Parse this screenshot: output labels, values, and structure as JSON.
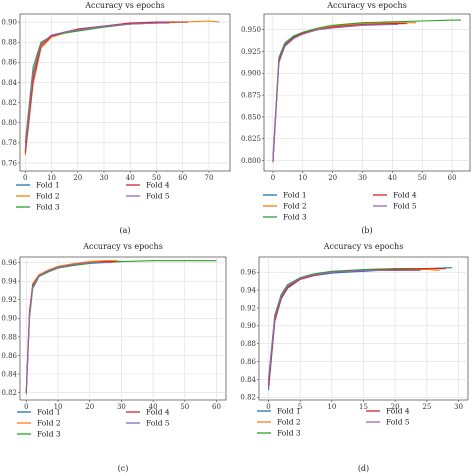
{
  "chart_data": [
    {
      "type": "line",
      "panel": "(a)",
      "title": "Accuracy vs epochs",
      "xlim": [
        -2,
        78
      ],
      "ylim": [
        0.752,
        0.908
      ],
      "xticks": [
        0,
        10,
        20,
        30,
        40,
        50,
        60,
        70
      ],
      "yticks": [
        0.76,
        0.78,
        0.8,
        0.82,
        0.84,
        0.86,
        0.88,
        0.9
      ],
      "ytick_labels": [
        "0.76",
        "0.78",
        "0.80",
        "0.82",
        "0.84",
        "0.86",
        "0.88",
        "0.90"
      ],
      "grid": true,
      "series": [
        {
          "name": "Fold 1",
          "color": "#1f77b4",
          "x": [
            0,
            3,
            6,
            10,
            15,
            20,
            30,
            40,
            50,
            58
          ],
          "y": [
            0.772,
            0.848,
            0.878,
            0.887,
            0.89,
            0.893,
            0.896,
            0.899,
            0.899,
            0.9
          ]
        },
        {
          "name": "Fold 2",
          "color": "#ff7f0e",
          "x": [
            0,
            3,
            6,
            10,
            15,
            20,
            30,
            40,
            50,
            60,
            70,
            74
          ],
          "y": [
            0.768,
            0.838,
            0.874,
            0.885,
            0.889,
            0.892,
            0.895,
            0.898,
            0.899,
            0.9,
            0.901,
            0.9
          ]
        },
        {
          "name": "Fold 3",
          "color": "#2ca02c",
          "x": [
            0,
            3,
            6,
            10,
            15,
            20,
            30,
            40,
            48
          ],
          "y": [
            0.78,
            0.855,
            0.88,
            0.886,
            0.889,
            0.891,
            0.895,
            0.898,
            0.899
          ]
        },
        {
          "name": "Fold 4",
          "color": "#d62728",
          "x": [
            0,
            3,
            6,
            10,
            15,
            20,
            30,
            40,
            50,
            62
          ],
          "y": [
            0.77,
            0.842,
            0.876,
            0.886,
            0.89,
            0.893,
            0.896,
            0.899,
            0.9,
            0.9
          ]
        },
        {
          "name": "Fold 5",
          "color": "#9467bd",
          "x": [
            0,
            3,
            6,
            10,
            15,
            20,
            30,
            40,
            50,
            55
          ],
          "y": [
            0.775,
            0.85,
            0.878,
            0.887,
            0.89,
            0.892,
            0.896,
            0.898,
            0.899,
            0.899
          ]
        }
      ],
      "legend": [
        "Fold 1",
        "Fold 2",
        "Fold 3",
        "Fold 4",
        "Fold 5"
      ]
    },
    {
      "type": "line",
      "panel": "(b)",
      "title": "Accuracy vs epochs",
      "xlim": [
        -3,
        66
      ],
      "ylim": [
        0.788,
        0.968
      ],
      "xticks": [
        0,
        10,
        20,
        30,
        40,
        50,
        60
      ],
      "yticks": [
        0.8,
        0.825,
        0.85,
        0.875,
        0.9,
        0.925,
        0.95
      ],
      "ytick_labels": [
        "0.800",
        "0.825",
        "0.850",
        "0.875",
        "0.900",
        "0.925",
        "0.950"
      ],
      "grid": true,
      "series": [
        {
          "name": "Fold 1",
          "color": "#1f77b4",
          "x": [
            0,
            2,
            4,
            7,
            10,
            15,
            20,
            30,
            40,
            45
          ],
          "y": [
            0.798,
            0.915,
            0.933,
            0.942,
            0.946,
            0.95,
            0.953,
            0.956,
            0.957,
            0.957
          ]
        },
        {
          "name": "Fold 2",
          "color": "#ff7f0e",
          "x": [
            0,
            2,
            4,
            7,
            10,
            15,
            20,
            30,
            40,
            48
          ],
          "y": [
            0.8,
            0.913,
            0.932,
            0.941,
            0.946,
            0.951,
            0.954,
            0.957,
            0.958,
            0.958
          ]
        },
        {
          "name": "Fold 3",
          "color": "#2ca02c",
          "x": [
            0,
            2,
            4,
            7,
            10,
            15,
            20,
            30,
            40,
            50,
            60,
            63
          ],
          "y": [
            0.805,
            0.918,
            0.935,
            0.943,
            0.947,
            0.952,
            0.955,
            0.958,
            0.959,
            0.96,
            0.961,
            0.961
          ]
        },
        {
          "name": "Fold 4",
          "color": "#d62728",
          "x": [
            0,
            2,
            4,
            7,
            10,
            15,
            20,
            30,
            40,
            44
          ],
          "y": [
            0.799,
            0.914,
            0.932,
            0.941,
            0.946,
            0.95,
            0.953,
            0.956,
            0.957,
            0.957
          ]
        },
        {
          "name": "Fold 5",
          "color": "#9467bd",
          "x": [
            0,
            2,
            4,
            7,
            10,
            15,
            20,
            30,
            40,
            42
          ],
          "y": [
            0.801,
            0.912,
            0.931,
            0.94,
            0.945,
            0.95,
            0.952,
            0.955,
            0.956,
            0.956
          ]
        }
      ],
      "legend": [
        "Fold 1",
        "Fold 2",
        "Fold 3",
        "Fold 4",
        "Fold 5"
      ]
    },
    {
      "type": "line",
      "panel": "(c)",
      "title": "Accuracy vs epochs",
      "xlim": [
        -2,
        63
      ],
      "ylim": [
        0.812,
        0.966
      ],
      "xticks": [
        0,
        10,
        20,
        30,
        40,
        50,
        60
      ],
      "yticks": [
        0.82,
        0.84,
        0.86,
        0.88,
        0.9,
        0.92,
        0.94,
        0.96
      ],
      "ytick_labels": [
        "0.82",
        "0.84",
        "0.86",
        "0.88",
        "0.90",
        "0.92",
        "0.94",
        "0.96"
      ],
      "grid": true,
      "series": [
        {
          "name": "Fold 1",
          "color": "#1f77b4",
          "x": [
            0,
            1,
            2,
            4,
            7,
            10,
            15,
            20,
            25,
            30
          ],
          "y": [
            0.82,
            0.905,
            0.935,
            0.946,
            0.951,
            0.955,
            0.958,
            0.96,
            0.961,
            0.961
          ]
        },
        {
          "name": "Fold 2",
          "color": "#ff7f0e",
          "x": [
            0,
            1,
            2,
            4,
            7,
            10,
            15,
            20,
            25,
            29
          ],
          "y": [
            0.822,
            0.908,
            0.937,
            0.947,
            0.952,
            0.956,
            0.959,
            0.961,
            0.962,
            0.962
          ]
        },
        {
          "name": "Fold 3",
          "color": "#2ca02c",
          "x": [
            0,
            1,
            2,
            4,
            7,
            10,
            15,
            20,
            30,
            40,
            50,
            60
          ],
          "y": [
            0.818,
            0.9,
            0.932,
            0.945,
            0.95,
            0.954,
            0.957,
            0.959,
            0.961,
            0.962,
            0.962,
            0.962
          ]
        },
        {
          "name": "Fold 4",
          "color": "#d62728",
          "x": [
            0,
            1,
            2,
            4,
            7,
            10,
            15,
            20,
            25,
            28
          ],
          "y": [
            0.821,
            0.906,
            0.936,
            0.946,
            0.951,
            0.955,
            0.958,
            0.96,
            0.961,
            0.961
          ]
        },
        {
          "name": "Fold 5",
          "color": "#9467bd",
          "x": [
            0,
            1,
            2,
            4,
            7,
            10,
            15,
            20,
            25,
            27
          ],
          "y": [
            0.823,
            0.904,
            0.934,
            0.946,
            0.951,
            0.955,
            0.958,
            0.96,
            0.96,
            0.96
          ]
        }
      ],
      "legend": [
        "Fold 1",
        "Fold 2",
        "Fold 3",
        "Fold 4",
        "Fold 5"
      ]
    },
    {
      "type": "line",
      "panel": "(d)",
      "title": "Accuracy vs epochs",
      "xlim": [
        -1.5,
        31.5
      ],
      "ylim": [
        0.817,
        0.977
      ],
      "xticks": [
        0,
        5,
        10,
        15,
        20,
        25,
        30
      ],
      "yticks": [
        0.82,
        0.84,
        0.86,
        0.88,
        0.9,
        0.92,
        0.94,
        0.96
      ],
      "ytick_labels": [
        "0.82",
        "0.84",
        "0.86",
        "0.88",
        "0.90",
        "0.92",
        "0.94",
        "0.96"
      ],
      "grid": true,
      "series": [
        {
          "name": "Fold 1",
          "color": "#1f77b4",
          "x": [
            0,
            1,
            2,
            3,
            5,
            7,
            10,
            15,
            20,
            25,
            29
          ],
          "y": [
            0.828,
            0.905,
            0.93,
            0.942,
            0.952,
            0.956,
            0.959,
            0.961,
            0.963,
            0.964,
            0.965
          ]
        },
        {
          "name": "Fold 2",
          "color": "#ff7f0e",
          "x": [
            0,
            1,
            2,
            3,
            5,
            7,
            10,
            15,
            20,
            25,
            27
          ],
          "y": [
            0.835,
            0.908,
            0.932,
            0.944,
            0.953,
            0.957,
            0.96,
            0.962,
            0.963,
            0.963,
            0.962
          ]
        },
        {
          "name": "Fold 3",
          "color": "#2ca02c",
          "x": [
            0,
            1,
            2,
            3,
            5,
            7,
            10,
            15,
            20,
            25,
            28
          ],
          "y": [
            0.84,
            0.912,
            0.935,
            0.946,
            0.954,
            0.958,
            0.961,
            0.963,
            0.964,
            0.964,
            0.964
          ]
        },
        {
          "name": "Fold 4",
          "color": "#d62728",
          "x": [
            0,
            1,
            2,
            3,
            5,
            7,
            10,
            15,
            20,
            25,
            28
          ],
          "y": [
            0.832,
            0.906,
            0.931,
            0.943,
            0.952,
            0.956,
            0.96,
            0.962,
            0.963,
            0.964,
            0.964
          ]
        },
        {
          "name": "Fold 5",
          "color": "#9467bd",
          "x": [
            0,
            1,
            2,
            3,
            5,
            7,
            10,
            15,
            20,
            24
          ],
          "y": [
            0.838,
            0.91,
            0.933,
            0.945,
            0.953,
            0.957,
            0.96,
            0.962,
            0.962,
            0.962
          ]
        }
      ],
      "legend": [
        "Fold 1",
        "Fold 2",
        "Fold 3",
        "Fold 4",
        "Fold 5"
      ]
    }
  ]
}
